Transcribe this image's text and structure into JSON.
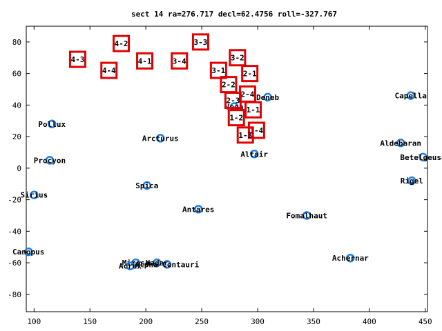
{
  "chart_data": {
    "type": "scatter",
    "title": "sect 14 ra=276.717 decl=62.4756 roll=-327.767",
    "xlabel": "",
    "ylabel": "",
    "xlim": [
      93,
      452
    ],
    "ylim": [
      -91,
      90
    ],
    "x_ticks": [
      100,
      150,
      200,
      250,
      300,
      350,
      400,
      450
    ],
    "y_ticks": [
      -80,
      -60,
      -40,
      -20,
      0,
      20,
      40,
      60,
      80
    ],
    "grid": false,
    "colors": {
      "stars": "#1e7fe0",
      "sectors": "#e00000",
      "text": "#000000",
      "axes": "#000000"
    },
    "series": [
      {
        "marker": "circle",
        "points": [
          {
            "name": "Capella",
            "x": 437,
            "y": 46
          },
          {
            "name": "Deneb",
            "x": 309,
            "y": 45
          },
          {
            "name": "Vega",
            "x": 279,
            "y": 39
          },
          {
            "name": "Pollux",
            "x": 116,
            "y": 28
          },
          {
            "name": "Arcturus",
            "x": 213,
            "y": 19
          },
          {
            "name": "Aldebaran",
            "x": 428,
            "y": 16
          },
          {
            "name": "Altair",
            "x": 297,
            "y": 9
          },
          {
            "name": "Betelgeuse",
            "x": 448,
            "y": 7
          },
          {
            "name": "Procyon",
            "x": 114,
            "y": 5
          },
          {
            "name": "Rigel",
            "x": 438,
            "y": -8
          },
          {
            "name": "Spica",
            "x": 201,
            "y": -11
          },
          {
            "name": "Sirius",
            "x": 100,
            "y": -17
          },
          {
            "name": "Antares",
            "x": 247,
            "y": -26
          },
          {
            "name": "Fomalhaut",
            "x": 344,
            "y": -30
          },
          {
            "name": "Canopus",
            "x": 95,
            "y": -53
          },
          {
            "name": "Achernar",
            "x": 383,
            "y": -57
          },
          {
            "name": "Mimosa",
            "x": 191,
            "y": -60
          },
          {
            "name": "Acrux",
            "x": 186,
            "y": -62
          },
          {
            "name": "Hadar",
            "x": 210,
            "y": -60
          },
          {
            "name": "Alpha Centauri",
            "x": 219,
            "y": -61
          }
        ]
      },
      {
        "marker": "square",
        "points": [
          {
            "name": "4-2",
            "x": 178,
            "y": 79
          },
          {
            "name": "3-3",
            "x": 249,
            "y": 80
          },
          {
            "name": "4-3",
            "x": 139,
            "y": 69
          },
          {
            "name": "4-1",
            "x": 199,
            "y": 68
          },
          {
            "name": "3-4",
            "x": 230,
            "y": 68
          },
          {
            "name": "3-2",
            "x": 282,
            "y": 70
          },
          {
            "name": "4-4",
            "x": 167,
            "y": 62
          },
          {
            "name": "3-1",
            "x": 265,
            "y": 62
          },
          {
            "name": "2-1",
            "x": 293,
            "y": 60
          },
          {
            "name": "2-2",
            "x": 274,
            "y": 53
          },
          {
            "name": "2-4",
            "x": 291,
            "y": 47
          },
          {
            "name": "2-3",
            "x": 278,
            "y": 43
          },
          {
            "name": "1-1",
            "x": 296,
            "y": 37
          },
          {
            "name": "1-2",
            "x": 281,
            "y": 32
          },
          {
            "name": "1-4",
            "x": 299,
            "y": 24
          },
          {
            "name": "1-3",
            "x": 289,
            "y": 21
          }
        ]
      }
    ],
    "stars": [
      {
        "name": "Capella"
      },
      {
        "name": "Deneb"
      },
      {
        "name": "Vega"
      },
      {
        "name": "Pollux"
      },
      {
        "name": "Arcturus"
      },
      {
        "name": "Aldebaran"
      },
      {
        "name": "Altair"
      },
      {
        "name": "Betelgeuse"
      },
      {
        "name": "Procyon"
      },
      {
        "name": "Rigel"
      },
      {
        "name": "Spica"
      },
      {
        "name": "Sirius"
      },
      {
        "name": "Antares"
      },
      {
        "name": "Fomalhaut"
      },
      {
        "name": "Canopus"
      },
      {
        "name": "Achernar"
      },
      {
        "name": "Mimosa"
      },
      {
        "name": "Acrux"
      },
      {
        "name": "Hadar"
      },
      {
        "name": "Alpha Centauri"
      }
    ]
  }
}
